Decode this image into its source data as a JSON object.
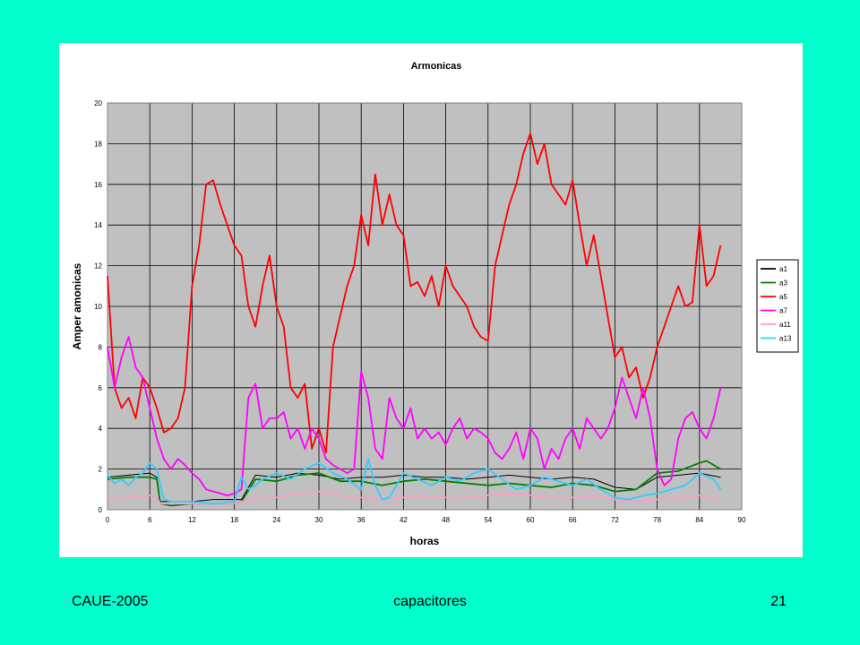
{
  "footer": {
    "left": "CAUE-2005",
    "center": "capacitores",
    "right": "21"
  },
  "chart_data": {
    "type": "line",
    "title": "Armonicas",
    "xlabel": "horas",
    "ylabel": "Amper amonicas",
    "xlim": [
      0,
      90
    ],
    "ylim": [
      0,
      20
    ],
    "xticks": [
      0,
      6,
      12,
      18,
      24,
      30,
      36,
      42,
      48,
      54,
      60,
      66,
      72,
      78,
      84,
      90
    ],
    "yticks": [
      0,
      2,
      4,
      6,
      8,
      10,
      12,
      14,
      16,
      18,
      20
    ],
    "grid": true,
    "plot_background": "#C0C0C0",
    "legend_position": "right",
    "series": [
      {
        "name": "a1",
        "color": "#000000",
        "x": [
          0,
          3,
          6,
          7,
          7.5,
          9,
          12,
          15,
          18,
          19,
          21,
          24,
          27,
          30,
          33,
          36,
          39,
          42,
          45,
          48,
          51,
          54,
          57,
          60,
          63,
          66,
          69,
          72,
          75,
          78,
          81,
          84,
          87
        ],
        "y": [
          1.6,
          1.7,
          1.8,
          1.6,
          0.4,
          0.4,
          0.4,
          0.5,
          0.5,
          0.5,
          1.7,
          1.6,
          1.8,
          1.7,
          1.5,
          1.6,
          1.6,
          1.7,
          1.6,
          1.6,
          1.5,
          1.6,
          1.7,
          1.6,
          1.5,
          1.6,
          1.5,
          1.1,
          1.0,
          1.6,
          1.7,
          1.8,
          1.6
        ]
      },
      {
        "name": "a3",
        "color": "#008000",
        "x": [
          0,
          3,
          6,
          7,
          7.5,
          9,
          12,
          15,
          18,
          19,
          21,
          24,
          27,
          30,
          33,
          36,
          39,
          42,
          45,
          48,
          51,
          54,
          57,
          60,
          63,
          66,
          69,
          72,
          75,
          78,
          81,
          84,
          85,
          87
        ],
        "y": [
          1.5,
          1.6,
          1.6,
          1.5,
          0.3,
          0.2,
          0.3,
          0.3,
          0.3,
          0.4,
          1.5,
          1.4,
          1.7,
          1.8,
          1.4,
          1.4,
          1.2,
          1.4,
          1.5,
          1.4,
          1.3,
          1.2,
          1.3,
          1.2,
          1.1,
          1.3,
          1.2,
          0.9,
          1.0,
          1.8,
          1.9,
          2.3,
          2.4,
          2.0
        ]
      },
      {
        "name": "a5",
        "color": "#FF0000",
        "x": [
          0,
          1,
          2,
          3,
          4,
          5,
          6,
          7,
          8,
          9,
          10,
          11,
          12,
          13,
          14,
          15,
          16,
          17,
          18,
          19,
          20,
          21,
          22,
          23,
          24,
          25,
          26,
          27,
          28,
          29,
          30,
          31,
          32,
          33,
          34,
          35,
          36,
          37,
          38,
          39,
          40,
          41,
          42,
          43,
          44,
          45,
          46,
          47,
          48,
          49,
          50,
          51,
          52,
          53,
          54,
          55,
          56,
          57,
          58,
          59,
          60,
          61,
          62,
          63,
          64,
          65,
          66,
          67,
          68,
          69,
          70,
          71,
          72,
          73,
          74,
          75,
          76,
          77,
          78,
          79,
          80,
          81,
          82,
          83,
          84,
          85,
          86,
          87
        ],
        "y": [
          11.5,
          6.0,
          5.0,
          5.5,
          4.5,
          6.5,
          6.0,
          5.0,
          3.8,
          4.0,
          4.5,
          6.0,
          11.0,
          13.0,
          16.0,
          16.2,
          15.0,
          14.0,
          13.0,
          12.5,
          10.0,
          9.0,
          11.0,
          12.5,
          10.0,
          9.0,
          6.0,
          5.5,
          6.2,
          3.0,
          4.0,
          2.8,
          8.0,
          9.5,
          11.0,
          12.0,
          14.5,
          13.0,
          16.5,
          14.0,
          15.5,
          14.0,
          13.5,
          11.0,
          11.2,
          10.5,
          11.5,
          10.0,
          12.0,
          11.0,
          10.5,
          10.0,
          9.0,
          8.5,
          8.3,
          12.0,
          13.5,
          15.0,
          16.0,
          17.5,
          18.5,
          17.0,
          18.0,
          16.0,
          15.5,
          15.0,
          16.2,
          14.0,
          12.0,
          13.5,
          11.5,
          9.5,
          7.5,
          8.0,
          6.5,
          7.0,
          5.5,
          6.5,
          8.0,
          9.0,
          10.0,
          11.0,
          10.0,
          10.2,
          14.0,
          11.0,
          11.5,
          13.0
        ]
      },
      {
        "name": "a7",
        "color": "#FF00FF",
        "x": [
          0,
          1,
          2,
          3,
          4,
          5,
          6,
          7,
          8,
          9,
          10,
          11,
          12,
          13,
          14,
          15,
          16,
          17,
          18,
          19,
          20,
          21,
          22,
          23,
          24,
          25,
          26,
          27,
          28,
          29,
          30,
          31,
          32,
          33,
          34,
          35,
          36,
          37,
          38,
          39,
          40,
          41,
          42,
          43,
          44,
          45,
          46,
          47,
          48,
          49,
          50,
          51,
          52,
          53,
          54,
          55,
          56,
          57,
          58,
          59,
          60,
          61,
          62,
          63,
          64,
          65,
          66,
          67,
          68,
          69,
          70,
          71,
          72,
          73,
          74,
          75,
          76,
          77,
          78,
          79,
          80,
          81,
          82,
          83,
          84,
          85,
          86,
          87
        ],
        "y": [
          8.0,
          6.0,
          7.5,
          8.5,
          7.0,
          6.5,
          5.0,
          3.5,
          2.5,
          2.0,
          2.5,
          2.2,
          1.8,
          1.5,
          1.0,
          0.9,
          0.8,
          0.7,
          0.8,
          1.0,
          5.5,
          6.2,
          4.0,
          4.5,
          4.5,
          4.8,
          3.5,
          4.0,
          3.0,
          4.0,
          3.5,
          2.5,
          2.2,
          2.0,
          1.8,
          2.0,
          6.8,
          5.5,
          3.0,
          2.5,
          5.5,
          4.5,
          4.0,
          5.0,
          3.5,
          4.0,
          3.5,
          3.8,
          3.2,
          4.0,
          4.5,
          3.5,
          4.0,
          3.8,
          3.5,
          2.8,
          2.5,
          3.0,
          3.8,
          2.5,
          4.0,
          3.5,
          2.0,
          3.0,
          2.5,
          3.5,
          4.0,
          3.0,
          4.5,
          4.0,
          3.5,
          4.0,
          5.0,
          6.5,
          5.5,
          4.5,
          6.0,
          4.5,
          2.0,
          1.2,
          1.5,
          3.5,
          4.5,
          4.8,
          4.0,
          3.5,
          4.5,
          6.0
        ]
      },
      {
        "name": "a11",
        "color": "#FF99CC",
        "x": [
          0,
          3,
          6,
          7,
          7.5,
          9,
          12,
          15,
          18,
          21,
          24,
          27,
          30,
          33,
          36,
          39,
          42,
          45,
          48,
          51,
          54,
          57,
          60,
          63,
          66,
          69,
          72,
          75,
          78,
          81,
          84,
          87
        ],
        "y": [
          0.6,
          0.6,
          0.7,
          0.6,
          0.3,
          0.3,
          0.3,
          0.3,
          0.3,
          0.6,
          0.6,
          0.8,
          0.9,
          0.7,
          0.6,
          0.5,
          0.6,
          0.7,
          0.6,
          0.6,
          0.7,
          0.8,
          0.7,
          0.6,
          0.6,
          0.7,
          0.5,
          0.4,
          0.5,
          0.6,
          0.7,
          0.5
        ]
      },
      {
        "name": "a13",
        "color": "#33CCFF",
        "x": [
          0,
          1,
          2,
          3,
          4,
          5,
          6,
          7,
          8,
          9,
          12,
          15,
          18,
          19,
          20,
          21,
          22,
          24,
          26,
          28,
          30,
          32,
          34,
          36,
          37,
          38,
          39,
          40,
          42,
          44,
          46,
          48,
          50,
          52,
          54,
          56,
          58,
          60,
          62,
          64,
          66,
          68,
          70,
          72,
          74,
          76,
          78,
          80,
          82,
          84,
          86,
          87
        ],
        "y": [
          1.7,
          1.3,
          1.5,
          1.2,
          1.6,
          1.8,
          2.3,
          2.0,
          0.5,
          0.4,
          0.4,
          0.3,
          0.4,
          1.6,
          1.0,
          1.2,
          1.5,
          1.8,
          1.5,
          2.0,
          2.3,
          1.8,
          1.5,
          1.0,
          2.5,
          1.2,
          0.5,
          0.6,
          1.8,
          1.5,
          1.2,
          1.6,
          1.4,
          1.8,
          2.0,
          1.5,
          1.0,
          1.2,
          1.6,
          1.4,
          1.2,
          1.5,
          1.0,
          0.6,
          0.5,
          0.7,
          0.8,
          1.0,
          1.2,
          1.8,
          1.5,
          1.0
        ]
      }
    ]
  }
}
